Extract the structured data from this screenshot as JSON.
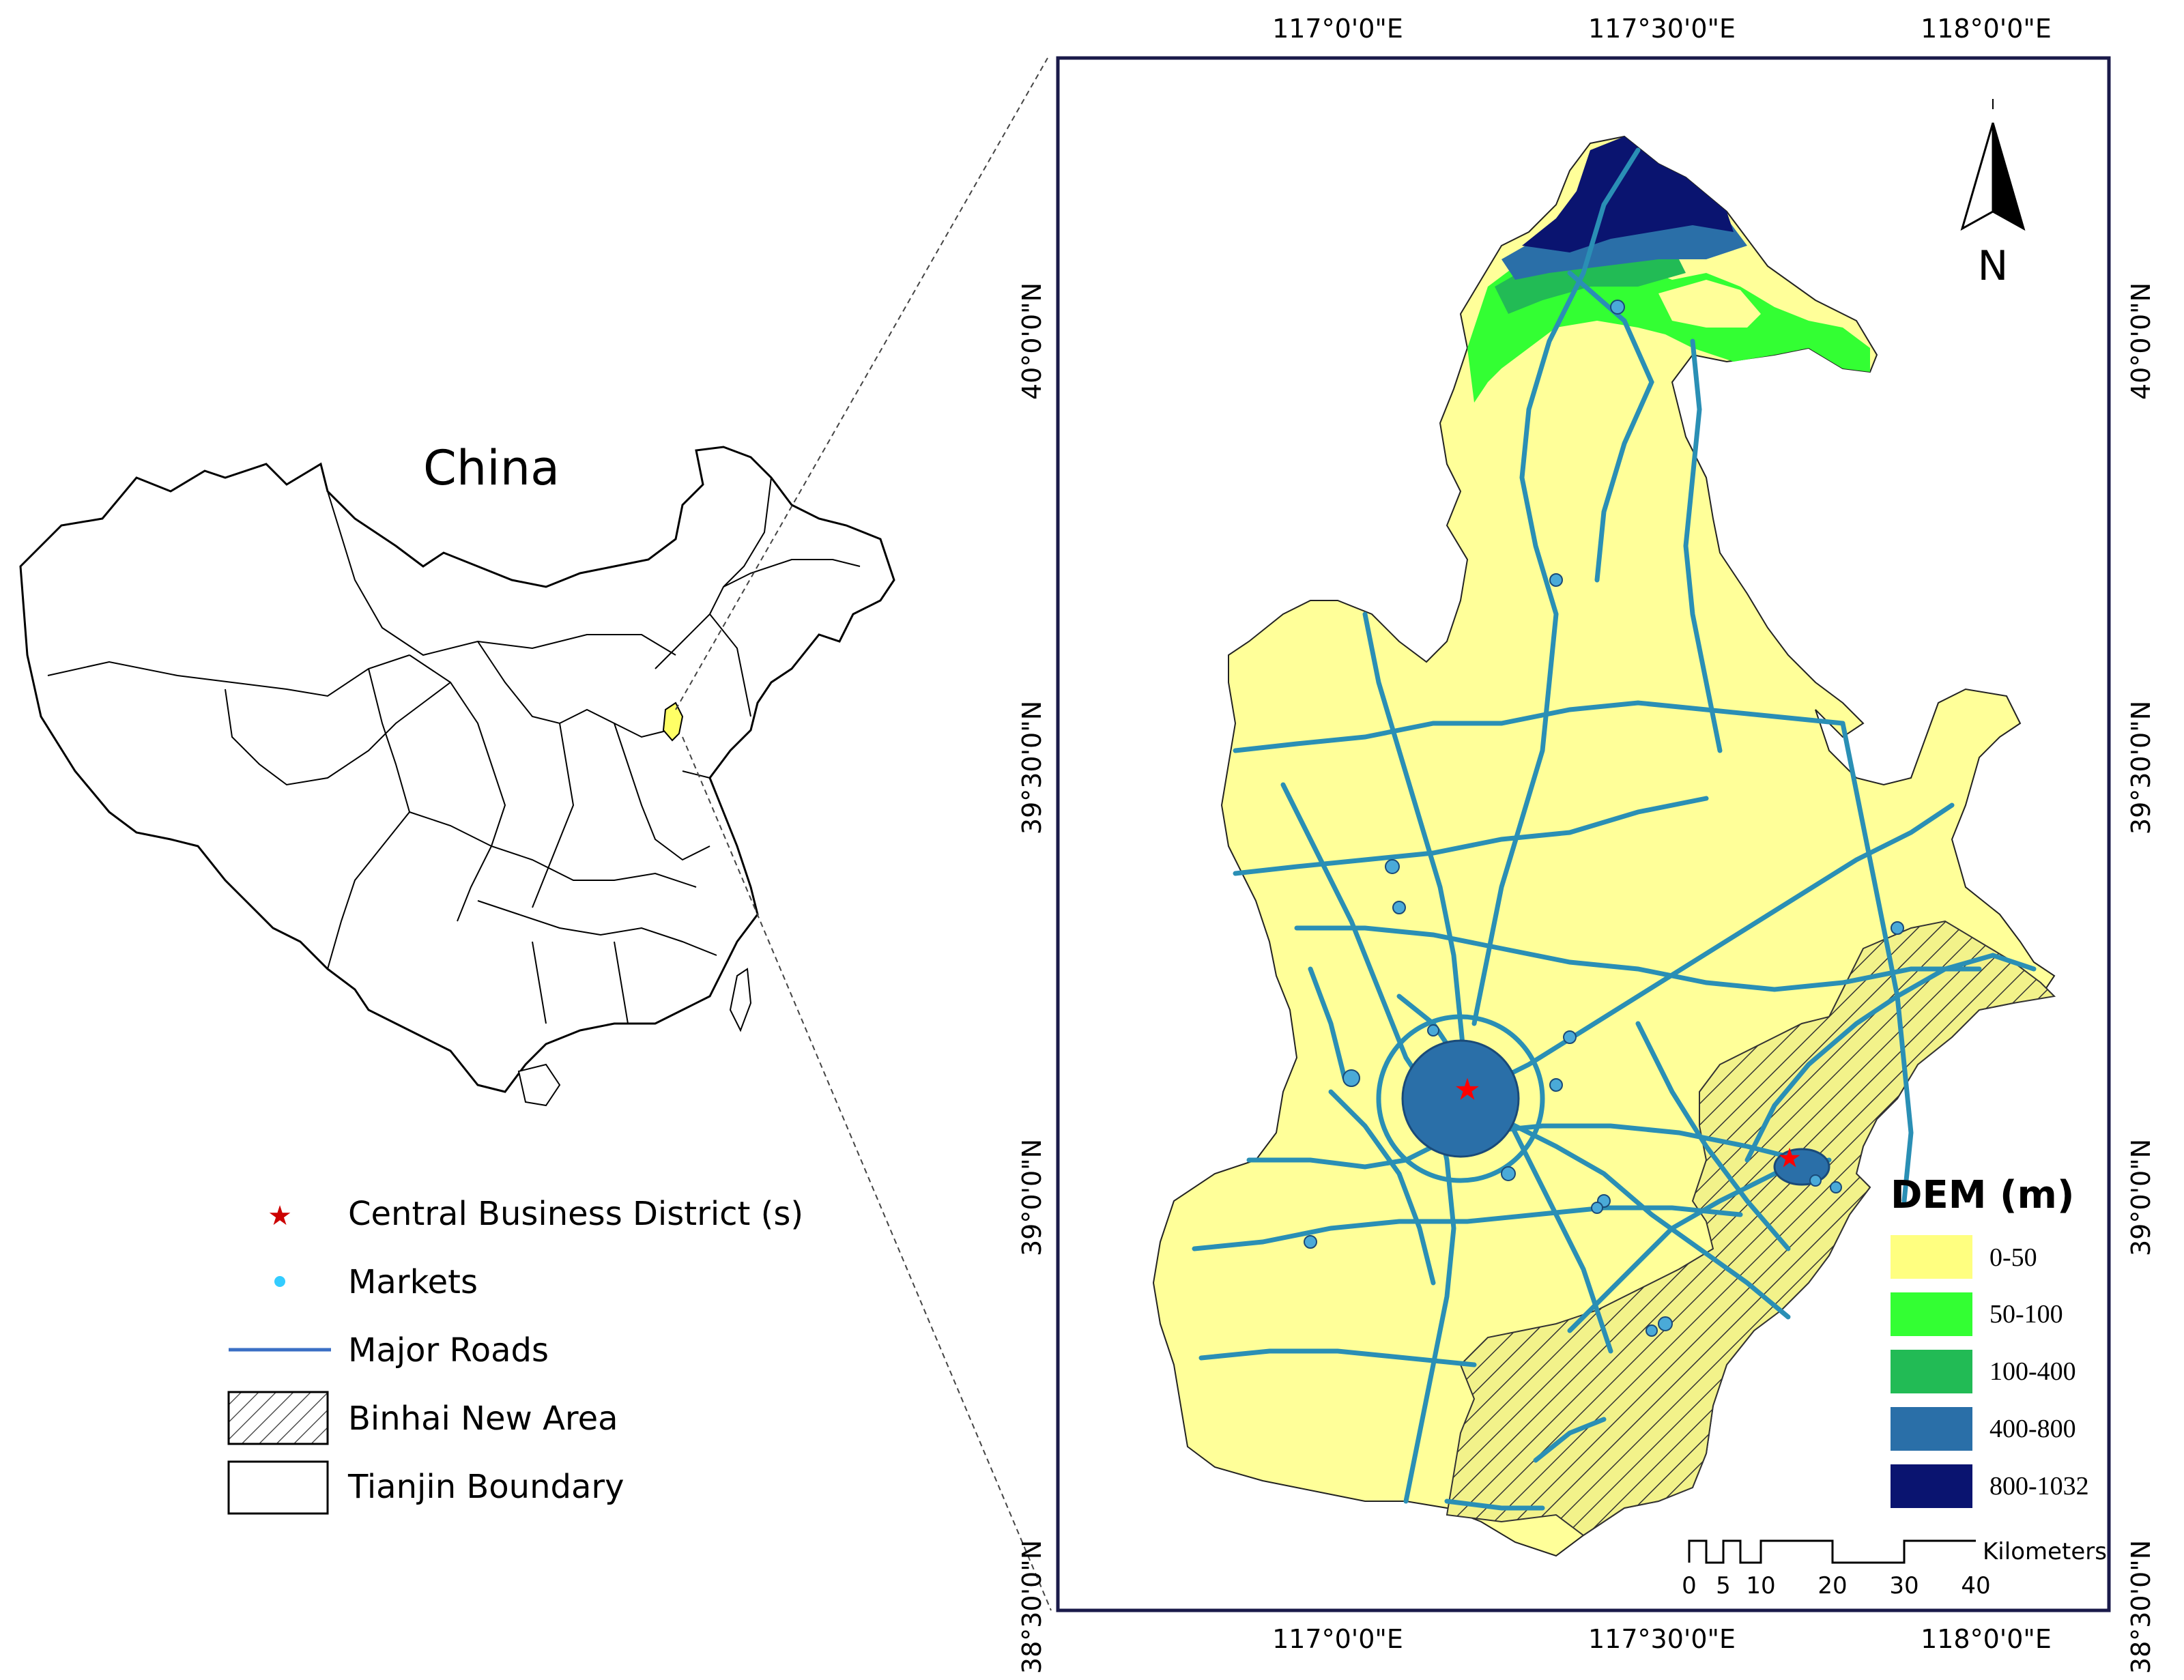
{
  "inset": {
    "title": "China",
    "highlight_color": "#ffff66"
  },
  "legend": {
    "items": [
      {
        "label": "Central Business District (s)",
        "symbol": "star",
        "color": "#cc0000"
      },
      {
        "label": "Markets",
        "symbol": "dot",
        "color": "#33ccff"
      },
      {
        "label": "Major Roads",
        "symbol": "line",
        "color": "#3a6fc4"
      },
      {
        "label": "Binhai New Area",
        "symbol": "hatch",
        "color": "#555555"
      },
      {
        "label": "Tianjin Boundary",
        "symbol": "box",
        "color": "#000000"
      }
    ]
  },
  "main_map": {
    "top_lon_labels": [
      "117°0'0\"E",
      "117°30'0\"E",
      "118°0'0\"E"
    ],
    "bottom_lon_labels": [
      "117°0'0\"E",
      "117°30'0\"E",
      "118°0'0\"E"
    ],
    "left_lat_labels": [
      "40°0'0\"N",
      "39°30'0\"N",
      "39°0'0\"N",
      "38°30'0\"N"
    ],
    "right_lat_labels": [
      "40°0'0\"N",
      "39°30'0\"N",
      "39°0'0\"N",
      "38°30'0\"N"
    ],
    "north_label": "N",
    "road_color": "#2a8fb5",
    "land_color": "#ffff99"
  },
  "dem_legend": {
    "title": "DEM (m)",
    "classes": [
      {
        "label": "0-50",
        "color": "#ffff80"
      },
      {
        "label": "50-100",
        "color": "#33ff33"
      },
      {
        "label": "100-400",
        "color": "#22bb55"
      },
      {
        "label": "400-800",
        "color": "#2a6fa8"
      },
      {
        "label": "800-1032",
        "color": "#0a1470"
      }
    ]
  },
  "scale_bar": {
    "unit": "Kilometers",
    "ticks": [
      "0",
      "5",
      "10",
      "20",
      "30",
      "40"
    ]
  }
}
